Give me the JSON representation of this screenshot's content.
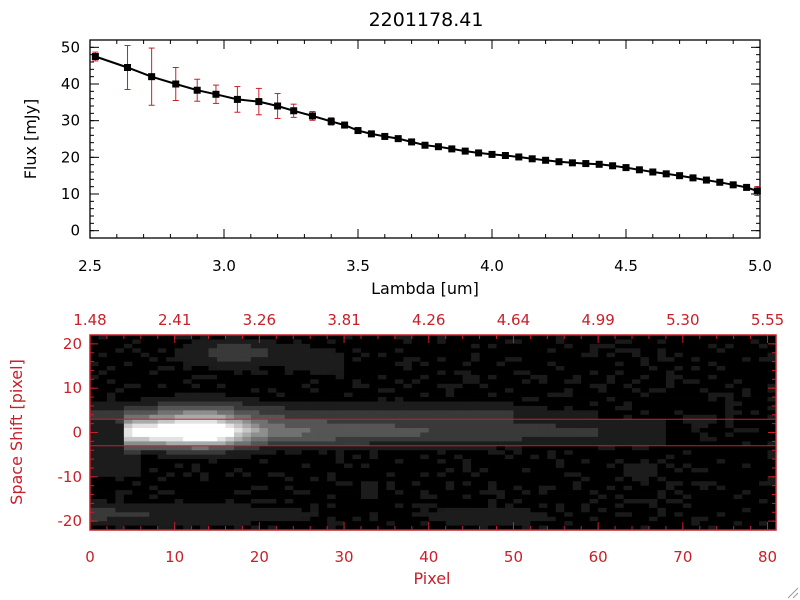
{
  "chart_data": [
    {
      "type": "line",
      "title": "2201178.41",
      "xlabel": "Lambda [um]",
      "ylabel": "Flux [mJy]",
      "xlim": [
        2.5,
        5.0
      ],
      "ylim": [
        -2,
        52
      ],
      "x_ticks": [
        "2.5",
        "3.0",
        "3.5",
        "4.0",
        "4.5",
        "5.0"
      ],
      "y_ticks": [
        "0",
        "10",
        "20",
        "30",
        "40",
        "50"
      ],
      "x_tick_values": [
        2.5,
        3.0,
        3.5,
        4.0,
        4.5,
        5.0
      ],
      "y_tick_values": [
        0,
        10,
        20,
        30,
        40,
        50
      ],
      "line_color": "#000000",
      "marker_color": "#000000",
      "errorbar_color": "#c8202a",
      "series": [
        {
          "x": [
            2.52,
            2.64,
            2.73,
            2.82,
            2.9,
            2.97,
            3.05,
            3.13,
            3.2,
            3.26,
            3.33,
            3.4,
            3.45,
            3.5,
            3.55,
            3.6,
            3.65,
            3.7,
            3.75,
            3.8,
            3.85,
            3.9,
            3.95,
            4.0,
            4.05,
            4.1,
            4.15,
            4.2,
            4.25,
            4.3,
            4.35,
            4.4,
            4.45,
            4.5,
            4.55,
            4.6,
            4.65,
            4.7,
            4.75,
            4.8,
            4.85,
            4.9,
            4.95,
            4.99
          ],
          "y": [
            47.5,
            44.5,
            42.0,
            40.0,
            38.3,
            37.2,
            35.8,
            35.2,
            34.0,
            32.7,
            31.3,
            29.8,
            28.8,
            27.3,
            26.4,
            25.7,
            25.1,
            24.2,
            23.3,
            22.9,
            22.3,
            21.7,
            21.2,
            20.8,
            20.5,
            20.1,
            19.6,
            19.2,
            18.8,
            18.5,
            18.3,
            18.1,
            17.7,
            17.2,
            16.6,
            16.0,
            15.5,
            15.0,
            14.4,
            13.8,
            13.2,
            12.5,
            11.8,
            10.8
          ],
          "yerr": [
            1.2,
            6.0,
            7.8,
            4.5,
            3.0,
            2.5,
            3.5,
            3.6,
            3.4,
            1.8,
            1.2,
            1.0,
            0.8,
            0.6,
            0.6,
            0.5,
            0.5,
            0.5,
            0.5,
            0.5,
            0.4,
            0.4,
            0.4,
            0.4,
            0.4,
            0.4,
            0.4,
            0.4,
            0.4,
            0.4,
            0.4,
            0.4,
            0.4,
            0.4,
            0.4,
            0.4,
            0.4,
            0.4,
            0.4,
            0.5,
            0.5,
            0.6,
            0.7,
            1.2
          ]
        }
      ]
    },
    {
      "type": "heatmap",
      "xlabel": "Pixel",
      "ylabel": "Space Shift [pixel]",
      "xlim": [
        0,
        81
      ],
      "ylim": [
        -22,
        22
      ],
      "x_ticks": [
        "0",
        "10",
        "20",
        "30",
        "40",
        "50",
        "60",
        "70",
        "80"
      ],
      "y_ticks": [
        "-20",
        "-10",
        "0",
        "10",
        "20"
      ],
      "x_tick_values": [
        0,
        10,
        20,
        30,
        40,
        50,
        60,
        70,
        80
      ],
      "y_tick_values": [
        -20,
        -10,
        0,
        10,
        20
      ],
      "top_axis_ticks": [
        "1.48",
        "2.41",
        "3.26",
        "3.81",
        "4.26",
        "4.64",
        "4.99",
        "5.30",
        "5.55"
      ],
      "top_axis_tick_positions": [
        0,
        10,
        20,
        30,
        40,
        50,
        60,
        70,
        80
      ],
      "extraction_window": [
        -3,
        3
      ],
      "colormap": "grayscale",
      "axis_color": "#c8202a",
      "guide_line_color": "#c8202a"
    }
  ]
}
